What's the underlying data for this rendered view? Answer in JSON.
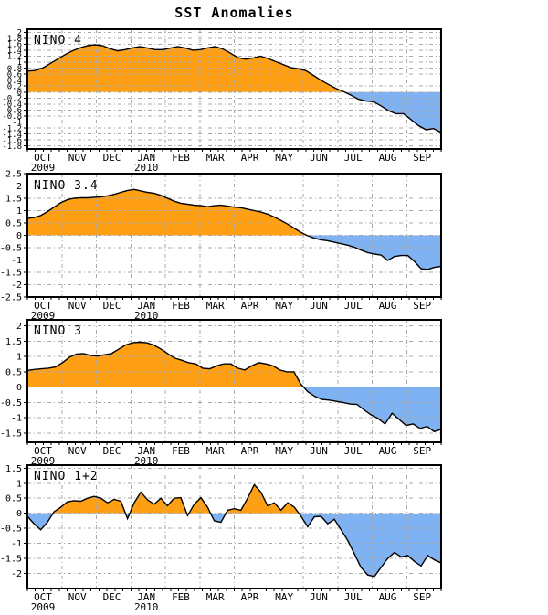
{
  "page": {
    "title": "SST Anomalies"
  },
  "colors": {
    "positive_fill": "#FFA014",
    "negative_fill": "#7FB2F2",
    "line": "#000000",
    "grid": "#A8A8A8",
    "background": "#FFFFFF"
  },
  "x_axis": {
    "months": [
      "OCT",
      "NOV",
      "DEC",
      "JAN",
      "FEB",
      "MAR",
      "APR",
      "MAY",
      "JUN",
      "JUL",
      "AUG",
      "SEP"
    ],
    "year_annotations": {
      "0": "2009",
      "3": "2010"
    }
  },
  "chart_data": [
    {
      "type": "area",
      "title": "NINO 4",
      "categories": [
        "OCT",
        "NOV",
        "DEC",
        "JAN",
        "FEB",
        "MAR",
        "APR",
        "MAY",
        "JUN",
        "JUL",
        "AUG",
        "SEP"
      ],
      "year_annotations": {
        "0": "2009",
        "3": "2010"
      },
      "ylim": [
        -1.9,
        2.1
      ],
      "yticks": [
        2,
        1.8,
        1.6,
        1.4,
        1.2,
        1,
        0.8,
        0.6,
        0.4,
        0.2,
        0,
        -0.2,
        -0.4,
        -0.6,
        -0.8,
        -1,
        -1.2,
        -1.4,
        -1.6,
        -1.8
      ],
      "grid": true,
      "legend": "none",
      "values": [
        0.7,
        0.72,
        0.8,
        0.95,
        1.1,
        1.25,
        1.38,
        1.48,
        1.55,
        1.58,
        1.55,
        1.45,
        1.38,
        1.42,
        1.48,
        1.52,
        1.47,
        1.42,
        1.42,
        1.47,
        1.52,
        1.47,
        1.4,
        1.42,
        1.48,
        1.52,
        1.44,
        1.3,
        1.15,
        1.1,
        1.14,
        1.2,
        1.12,
        1.02,
        0.92,
        0.82,
        0.78,
        0.72,
        0.56,
        0.4,
        0.26,
        0.12,
        0.02,
        -0.1,
        -0.24,
        -0.3,
        -0.32,
        -0.46,
        -0.62,
        -0.72,
        -0.72,
        -0.92,
        -1.12,
        -1.26,
        -1.22,
        -1.35
      ]
    },
    {
      "type": "area",
      "title": "NINO 3.4",
      "categories": [
        "OCT",
        "NOV",
        "DEC",
        "JAN",
        "FEB",
        "MAR",
        "APR",
        "MAY",
        "JUN",
        "JUL",
        "AUG",
        "SEP"
      ],
      "year_annotations": {
        "0": "2009",
        "3": "2010"
      },
      "ylim": [
        -2.5,
        2.5
      ],
      "yticks": [
        2.5,
        2,
        1.5,
        1,
        0.5,
        0,
        -0.5,
        -1,
        -1.5,
        -2,
        -2.5
      ],
      "grid": true,
      "legend": "none",
      "values": [
        0.68,
        0.72,
        0.8,
        0.96,
        1.14,
        1.32,
        1.44,
        1.5,
        1.52,
        1.52,
        1.54,
        1.56,
        1.6,
        1.66,
        1.74,
        1.82,
        1.86,
        1.8,
        1.74,
        1.7,
        1.62,
        1.5,
        1.38,
        1.3,
        1.26,
        1.22,
        1.2,
        1.16,
        1.2,
        1.22,
        1.18,
        1.14,
        1.12,
        1.06,
        1.0,
        0.94,
        0.86,
        0.74,
        0.6,
        0.45,
        0.28,
        0.12,
        -0.02,
        -0.12,
        -0.18,
        -0.22,
        -0.28,
        -0.34,
        -0.4,
        -0.48,
        -0.6,
        -0.7,
        -0.76,
        -0.8,
        -1.02,
        -0.86,
        -0.82,
        -0.82,
        -1.06,
        -1.36,
        -1.38,
        -1.3,
        -1.26
      ]
    },
    {
      "type": "area",
      "title": "NINO 3",
      "categories": [
        "OCT",
        "NOV",
        "DEC",
        "JAN",
        "FEB",
        "MAR",
        "APR",
        "MAY",
        "JUN",
        "JUL",
        "AUG",
        "SEP"
      ],
      "year_annotations": {
        "0": "2009",
        "3": "2010"
      },
      "ylim": [
        -1.8,
        2.2
      ],
      "yticks": [
        2,
        1.5,
        1,
        0.5,
        0,
        -0.5,
        -1,
        -1.5
      ],
      "grid": true,
      "legend": "none",
      "values": [
        0.55,
        0.58,
        0.6,
        0.62,
        0.66,
        0.8,
        0.98,
        1.08,
        1.1,
        1.04,
        1.02,
        1.06,
        1.1,
        1.24,
        1.38,
        1.45,
        1.47,
        1.45,
        1.38,
        1.25,
        1.1,
        0.95,
        0.88,
        0.8,
        0.76,
        0.62,
        0.6,
        0.7,
        0.76,
        0.76,
        0.62,
        0.56,
        0.7,
        0.8,
        0.76,
        0.7,
        0.56,
        0.5,
        0.5,
        0.1,
        -0.15,
        -0.3,
        -0.4,
        -0.42,
        -0.46,
        -0.5,
        -0.55,
        -0.56,
        -0.74,
        -0.9,
        -1.02,
        -1.2,
        -0.85,
        -1.05,
        -1.25,
        -1.2,
        -1.35,
        -1.28,
        -1.45,
        -1.38
      ]
    },
    {
      "type": "area",
      "title": "NINO 1+2",
      "categories": [
        "OCT",
        "NOV",
        "DEC",
        "JAN",
        "FEB",
        "MAR",
        "APR",
        "MAY",
        "JUN",
        "JUL",
        "AUG",
        "SEP"
      ],
      "year_annotations": {
        "0": "2009",
        "3": "2010"
      },
      "ylim": [
        -2.5,
        1.6
      ],
      "yticks": [
        1.5,
        1,
        0.5,
        0,
        -0.5,
        -1,
        -1.5,
        -2
      ],
      "grid": true,
      "legend": "none",
      "values": [
        -0.1,
        -0.35,
        -0.55,
        -0.3,
        0.05,
        0.2,
        0.38,
        0.42,
        0.4,
        0.5,
        0.56,
        0.5,
        0.35,
        0.46,
        0.4,
        -0.18,
        0.35,
        0.7,
        0.45,
        0.3,
        0.5,
        0.25,
        0.5,
        0.52,
        -0.08,
        0.3,
        0.52,
        0.2,
        -0.25,
        -0.3,
        0.1,
        0.15,
        0.1,
        0.5,
        0.95,
        0.7,
        0.25,
        0.35,
        0.1,
        0.35,
        0.2,
        -0.1,
        -0.45,
        -0.12,
        -0.1,
        -0.35,
        -0.2,
        -0.55,
        -0.9,
        -1.35,
        -1.8,
        -2.05,
        -2.1,
        -1.8,
        -1.5,
        -1.3,
        -1.45,
        -1.4,
        -1.6,
        -1.75,
        -1.4,
        -1.55,
        -1.65
      ]
    }
  ]
}
